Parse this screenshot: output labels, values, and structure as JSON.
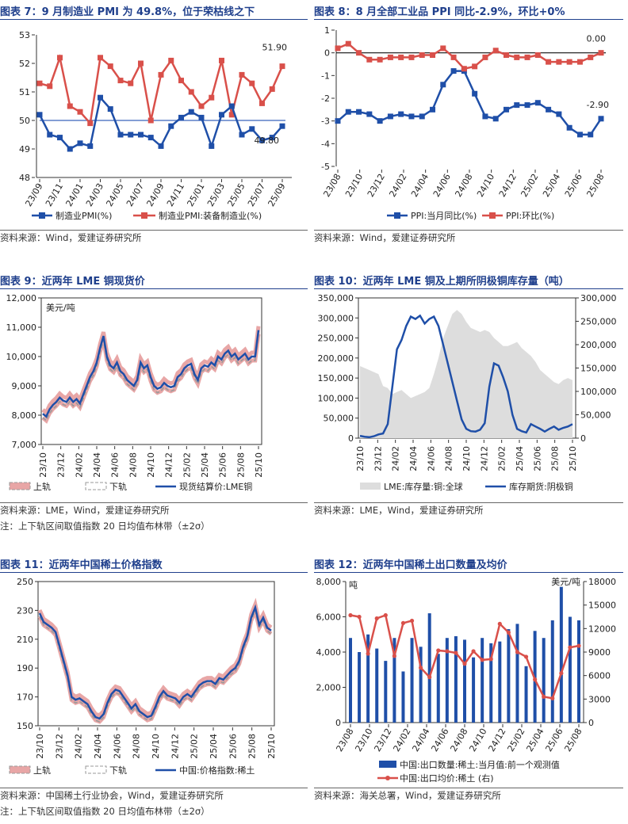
{
  "chart_data": [
    {
      "id": "c7",
      "type": "line",
      "title": "图表 7：9 月制造业 PMI 为 49.8%，位于荣枯线之下",
      "source": "资料来源：Wind，爱建证券研究所",
      "xticks": [
        "23/09",
        "23/11",
        "24/01",
        "24/03",
        "24/05",
        "24/07",
        "24/09",
        "24/11",
        "25/01",
        "25/03",
        "25/05",
        "25/07",
        "25/09"
      ],
      "ylim": [
        48,
        53
      ],
      "yticks": [
        "53",
        "52",
        "51",
        "50",
        "49",
        "48"
      ],
      "reference_line": 50,
      "series": [
        {
          "name": "制造业PMI(%)",
          "color": "#1f4fa8",
          "values": [
            50.2,
            49.5,
            49.4,
            49.0,
            49.2,
            49.1,
            50.8,
            50.4,
            49.5,
            49.5,
            49.5,
            49.4,
            49.1,
            49.8,
            50.1,
            50.3,
            50.1,
            49.1,
            50.2,
            50.5,
            49.5,
            49.7,
            49.3,
            49.4,
            49.8
          ]
        },
        {
          "name": "制造业PMI:装备制造业(%)",
          "color": "#d9504a",
          "values": [
            51.3,
            51.2,
            52.2,
            50.5,
            50.3,
            49.9,
            52.2,
            51.9,
            51.4,
            51.3,
            52.0,
            50.0,
            51.6,
            52.1,
            51.4,
            51.0,
            50.5,
            50.8,
            52.1,
            50.2,
            51.6,
            51.3,
            50.6,
            51.1,
            51.9
          ]
        }
      ],
      "annotations": [
        "51.90",
        "49.80"
      ]
    },
    {
      "id": "c8",
      "type": "line",
      "title": "图表 8：8 月全部工业品 PPI 同比-2.9%，环比+0%",
      "source": "资料来源：Wind，爱建证券研究所",
      "xticks": [
        "23/08",
        "23/10",
        "23/12",
        "24/02",
        "24/04",
        "24/06",
        "24/08",
        "24/10",
        "24/12",
        "25/02",
        "25/04",
        "25/06",
        "25/08"
      ],
      "ylim": [
        -5,
        1
      ],
      "yticks": [
        "1",
        "0",
        "-1",
        "-2",
        "-3",
        "-4",
        "-5"
      ],
      "series": [
        {
          "name": "PPI:当月同比(%)",
          "color": "#1f4fa8",
          "values": [
            -3.0,
            -2.6,
            -2.6,
            -2.7,
            -3.0,
            -2.8,
            -2.7,
            -2.8,
            -2.8,
            -2.5,
            -1.4,
            -0.8,
            -0.8,
            -1.8,
            -2.8,
            -2.9,
            -2.5,
            -2.3,
            -2.3,
            -2.2,
            -2.5,
            -2.7,
            -3.3,
            -3.6,
            -3.6,
            -2.9
          ]
        },
        {
          "name": "PPI:环比(%)",
          "color": "#d9504a",
          "values": [
            0.2,
            0.4,
            0.0,
            -0.3,
            -0.3,
            -0.2,
            -0.2,
            -0.2,
            -0.1,
            -0.1,
            0.2,
            -0.2,
            -0.7,
            -0.6,
            -0.2,
            0.1,
            -0.1,
            -0.2,
            -0.2,
            -0.1,
            -0.4,
            -0.4,
            -0.4,
            -0.4,
            -0.2,
            0.0
          ]
        }
      ],
      "annotations": [
        "0.00",
        "-2.90"
      ]
    },
    {
      "id": "c9",
      "type": "line",
      "title": "图表 9：近两年 LME 铜现货价",
      "source": "资料来源：LME，Wind，爱建证券研究所",
      "note": "注：上下轨区间取值指数 20 日均值布林带（±2σ）",
      "unit": "美元/吨",
      "xticks": [
        "23/10",
        "23/12",
        "24/02",
        "24/04",
        "24/06",
        "24/08",
        "24/10",
        "24/12",
        "25/02",
        "25/04",
        "25/06",
        "25/08",
        "25/10"
      ],
      "ylim": [
        7000,
        12000
      ],
      "yticks": [
        "12,000",
        "11,000",
        "10,000",
        "9,000",
        "8,000",
        "7,000"
      ],
      "legend": [
        "上轨",
        "下轨",
        "现货结算价:LME铜"
      ],
      "series": [
        {
          "name": "现货结算价:LME铜",
          "color": "#1f4fa8",
          "values": [
            8050,
            7950,
            8200,
            8350,
            8450,
            8600,
            8500,
            8450,
            8600,
            8450,
            8550,
            8400,
            8700,
            9000,
            9300,
            9500,
            9800,
            10300,
            10700,
            10000,
            9700,
            9600,
            9800,
            9500,
            9400,
            9200,
            9100,
            9000,
            9200,
            9800,
            9600,
            9700,
            9300,
            9000,
            8900,
            8950,
            9100,
            9000,
            8950,
            9000,
            9300,
            9400,
            9600,
            9700,
            9750,
            9400,
            9200,
            9600,
            9700,
            9650,
            9800,
            9700,
            10000,
            9900,
            10100,
            10200,
            10000,
            10100,
            9900,
            10000,
            10100,
            9900,
            10000,
            10000,
            10900
          ]
        }
      ]
    },
    {
      "id": "c10",
      "type": "area",
      "title": "图表 10：近两年 LME 铜及上期所阴极铜库存量（吨）",
      "source": "资料来源：LME，Wind，爱建证券研究所",
      "xticks": [
        "23/10",
        "23/12",
        "24/02",
        "24/04",
        "24/06",
        "24/08",
        "24/10",
        "24/12",
        "25/02",
        "25/04",
        "25/06",
        "25/08",
        "25/10"
      ],
      "ylim_left": [
        0,
        350000
      ],
      "ylim_right": [
        0,
        300000
      ],
      "yticks_left": [
        "350,000",
        "300,000",
        "250,000",
        "200,000",
        "150,000",
        "100,000",
        "50,000",
        "0"
      ],
      "yticks_right": [
        "300,000",
        "250,000",
        "200,000",
        "150,000",
        "100,000",
        "50,000",
        "0"
      ],
      "series": [
        {
          "name": "LME:库存量:铜:全球",
          "axis": "left",
          "color": "#dddddd",
          "values": [
            180000,
            175000,
            170000,
            165000,
            160000,
            130000,
            125000,
            110000,
            115000,
            120000,
            110000,
            100000,
            105000,
            110000,
            115000,
            125000,
            160000,
            200000,
            250000,
            280000,
            310000,
            320000,
            310000,
            290000,
            275000,
            270000,
            265000,
            270000,
            265000,
            250000,
            240000,
            230000,
            230000,
            235000,
            240000,
            225000,
            215000,
            205000,
            190000,
            170000,
            160000,
            150000,
            140000,
            135000,
            145000,
            150000,
            145000
          ]
        },
        {
          "name": "库存期货:阴极铜",
          "axis": "right",
          "color": "#1f4fa8",
          "values": [
            5000,
            3000,
            2000,
            4000,
            8000,
            10000,
            30000,
            110000,
            190000,
            210000,
            240000,
            260000,
            255000,
            262000,
            245000,
            255000,
            260000,
            240000,
            200000,
            160000,
            120000,
            80000,
            40000,
            20000,
            15000,
            14000,
            18000,
            32000,
            110000,
            160000,
            155000,
            130000,
            100000,
            50000,
            20000,
            15000,
            12000,
            30000,
            25000,
            20000,
            14000,
            20000,
            25000,
            18000,
            22000,
            25000,
            30000
          ]
        }
      ]
    },
    {
      "id": "c11",
      "type": "line",
      "title": "图表 11：近两年中国稀土价格指数",
      "source": "资料来源：中国稀土行业协会，Wind，爱建证券研究所",
      "note": "注：上下轨区间取值指数 20 日均值布林带（±2σ）",
      "xticks": [
        "23/10",
        "23/12",
        "24/02",
        "24/04",
        "24/06",
        "24/08",
        "24/10",
        "24/12",
        "25/02",
        "25/04",
        "25/06",
        "25/08",
        "25/10"
      ],
      "ylim": [
        150,
        250
      ],
      "yticks": [
        "250",
        "230",
        "210",
        "190",
        "170",
        "150"
      ],
      "legend": [
        "上轨",
        "下轨",
        "中国:价格指数:稀土"
      ],
      "series": [
        {
          "name": "中国:价格指数:稀土",
          "color": "#1f4fa8",
          "values": [
            228,
            222,
            220,
            218,
            215,
            205,
            195,
            185,
            170,
            168,
            169,
            167,
            165,
            160,
            156,
            155,
            158,
            166,
            172,
            175,
            174,
            170,
            166,
            162,
            165,
            160,
            158,
            156,
            157,
            163,
            170,
            174,
            171,
            170,
            169,
            166,
            170,
            172,
            170,
            174,
            178,
            180,
            181,
            181,
            179,
            183,
            182,
            185,
            188,
            190,
            195,
            205,
            212,
            225,
            232,
            220,
            225,
            218,
            216
          ]
        }
      ]
    },
    {
      "id": "c12",
      "type": "bar+line",
      "title": "图表 12：近两年中国稀土出口数量及均价",
      "source": "资料来源：海关总署，Wind，爱建证券研究所",
      "unit_left": "吨",
      "unit_right": "美元/吨",
      "xticks": [
        "23/08",
        "23/10",
        "23/12",
        "24/02",
        "24/04",
        "24/06",
        "24/08",
        "24/10",
        "24/12",
        "25/02",
        "25/04",
        "25/06",
        "25/08"
      ],
      "ylim_left": [
        0,
        8000
      ],
      "ylim_right": [
        0,
        18000
      ],
      "yticks_left": [
        "8,000",
        "6,000",
        "4,000",
        "2,000",
        "0"
      ],
      "yticks_right": [
        "18000",
        "15000",
        "12000",
        "9000",
        "6000",
        "3000",
        "0"
      ],
      "series": [
        {
          "name": "中国:出口数量:稀土:当月值:前一个观测值",
          "axis": "left",
          "type": "bar",
          "color": "#1f4fa8",
          "values": [
            4800,
            4000,
            5000,
            4200,
            3500,
            4800,
            2900,
            4800,
            4300,
            6200,
            3900,
            4800,
            4900,
            4700,
            3700,
            4800,
            4500,
            4600,
            5300,
            5600,
            3200,
            5200,
            4800,
            5800,
            7700,
            6000,
            5800
          ]
        },
        {
          "name": "中国:出口均价:稀土 (右)",
          "axis": "right",
          "type": "line",
          "color": "#d9504a",
          "values": [
            13700,
            13500,
            8800,
            13300,
            13700,
            8500,
            12700,
            13000,
            7000,
            5800,
            9200,
            9100,
            8900,
            7500,
            9100,
            8000,
            8100,
            12600,
            11500,
            9000,
            8400,
            5500,
            3300,
            3100,
            6300,
            9600,
            9800
          ]
        }
      ]
    }
  ]
}
